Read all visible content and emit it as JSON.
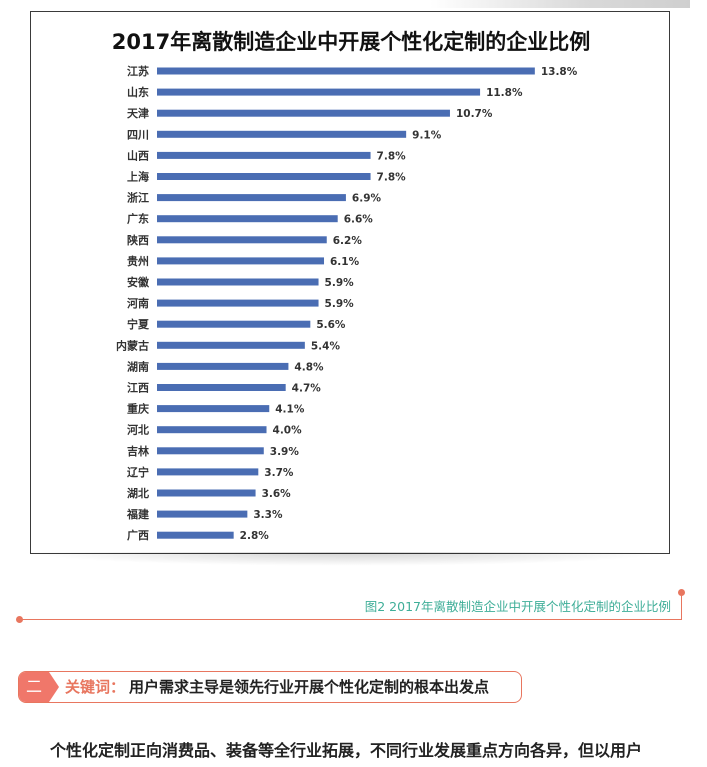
{
  "chart_data": {
    "type": "bar",
    "orientation": "horizontal",
    "title": "2017年离散制造企业中开展个性化定制的企业比例",
    "categories": [
      "江苏",
      "山东",
      "天津",
      "四川",
      "山西",
      "上海",
      "浙江",
      "广东",
      "陕西",
      "贵州",
      "安徽",
      "河南",
      "宁夏",
      "内蒙古",
      "湖南",
      "江西",
      "重庆",
      "河北",
      "吉林",
      "辽宁",
      "湖北",
      "福建",
      "广西"
    ],
    "values": [
      13.8,
      11.8,
      10.7,
      9.1,
      7.8,
      7.8,
      6.9,
      6.6,
      6.2,
      6.1,
      5.9,
      5.9,
      5.6,
      5.4,
      4.8,
      4.7,
      4.1,
      4.0,
      3.9,
      3.7,
      3.6,
      3.3,
      2.8
    ],
    "value_labels": [
      "13.8%",
      "11.8%",
      "10.7%",
      "9.1%",
      "7.8%",
      "7.8%",
      "6.9%",
      "6.6%",
      "6.2%",
      "6.1%",
      "5.9%",
      "5.9%",
      "5.6%",
      "5.4%",
      "4.8%",
      "4.7%",
      "4.1%",
      "4.0%",
      "3.9%",
      "3.7%",
      "3.6%",
      "3.3%",
      "2.8%"
    ],
    "unit": "%",
    "xlim": [
      0,
      14.5
    ],
    "grid": false,
    "bar_color": "#4a6db3"
  },
  "caption": "图2  2017年离散制造企业中开展个性化定制的企业比例",
  "section": {
    "number": "二",
    "keyword": "关键词：",
    "text": "用户需求主导是领先行业开展个性化定制的根本出发点"
  },
  "body_text": "个性化定制正向消费品、装备等全行业拓展，不同行业发展重点方向各异，但以用户",
  "colors": {
    "accent": "#e8765f",
    "caption": "#3fae98",
    "badge": "#f0776a"
  }
}
